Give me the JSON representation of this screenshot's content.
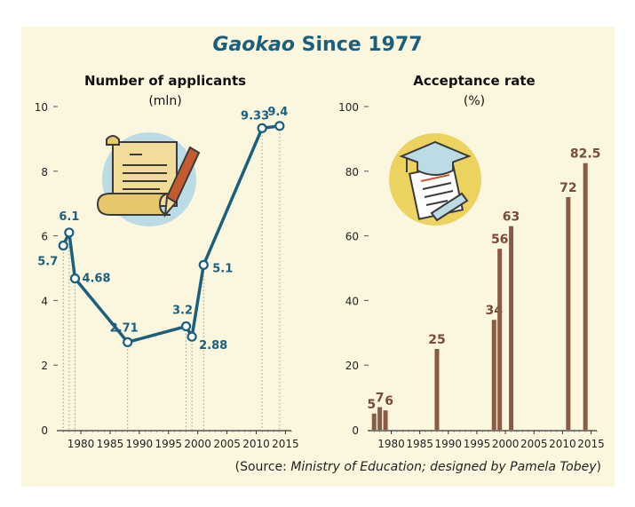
{
  "title": {
    "em": "Gaokao",
    "rest": " Since 1977"
  },
  "source": {
    "open": "(Source: ",
    "italic": "Ministry of Education; designed by Pamela Tobey",
    "close": ")"
  },
  "colors": {
    "panel": "#fbf7df",
    "line": "#1b5f7f",
    "bar": "#8a5a44",
    "barLabel": "#7a4a3a",
    "title": "#1b5f7f"
  },
  "icons": [
    "scroll-and-pen-icon",
    "graduation-cap-diploma-icon"
  ],
  "chart_data": [
    {
      "type": "line",
      "title": "Number of applicants",
      "subtitle": "(mln)",
      "ylim": [
        0,
        10
      ],
      "yticks": [
        0,
        2,
        4,
        6,
        8,
        10
      ],
      "xlim": [
        1976.5,
        2016
      ],
      "xticks": [
        1980,
        1985,
        1990,
        1995,
        2000,
        2005,
        2010,
        2015
      ],
      "x": [
        1977,
        1978,
        1979,
        1988,
        1998,
        1999,
        2001,
        2011,
        2014
      ],
      "values": [
        5.7,
        6.1,
        4.68,
        2.71,
        3.2,
        2.88,
        5.1,
        9.33,
        9.4
      ],
      "labels": [
        "5.7",
        "6.1",
        "4.68",
        "2.71",
        "3.2",
        "2.88",
        "5.1",
        "9.33",
        "9.4"
      ]
    },
    {
      "type": "bar",
      "title": "Acceptance rate",
      "subtitle": "(%)",
      "ylim": [
        0,
        100
      ],
      "yticks": [
        0,
        20,
        40,
        60,
        80,
        100
      ],
      "xlim": [
        1976.5,
        2016
      ],
      "xticks": [
        1980,
        1985,
        1990,
        1995,
        2000,
        2005,
        2010,
        2015
      ],
      "x": [
        1977,
        1978,
        1979,
        1988,
        1998,
        1999,
        2001,
        2011,
        2014
      ],
      "values": [
        5,
        7,
        6,
        25,
        34,
        56,
        63,
        72,
        82.5
      ],
      "labels": [
        "5",
        "7",
        "6",
        "25",
        "34",
        "56",
        "63",
        "72",
        "82.5"
      ]
    }
  ]
}
